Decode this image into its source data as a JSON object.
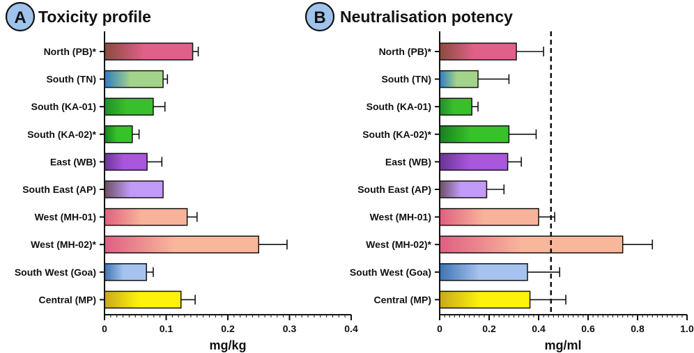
{
  "chart_data": [
    {
      "type": "bar",
      "orientation": "horizontal",
      "badge": "A",
      "title": "Toxicity profile",
      "xlabel": "mg/kg",
      "ylabel": "",
      "xlim": [
        0,
        0.4
      ],
      "xticks": [
        0,
        0.1,
        0.2,
        0.3,
        0.4
      ],
      "xtick_labels": [
        "0",
        "0.1",
        "0.2",
        "0.3",
        "0.4"
      ],
      "categories": [
        "North (PB)*",
        "South (TN)",
        "South (KA-01)",
        "South (KA-02)*",
        "East (WB)",
        "South East (AP)",
        "West (MH-01)",
        "West (MH-02)*",
        "South West (Goa)",
        "Central (MP)"
      ],
      "values": [
        0.143,
        0.095,
        0.079,
        0.045,
        0.069,
        0.095,
        0.134,
        0.25,
        0.068,
        0.124
      ],
      "errors": [
        0.009,
        0.007,
        0.019,
        0.011,
        0.024,
        0.0,
        0.016,
        0.046,
        0.011,
        0.023
      ],
      "grid": false
    },
    {
      "type": "bar",
      "orientation": "horizontal",
      "badge": "B",
      "title": "Neutralisation potency",
      "xlabel": "mg/ml",
      "ylabel": "",
      "xlim": [
        0,
        1.0
      ],
      "xticks": [
        0,
        0.2,
        0.4,
        0.6,
        0.8,
        1.0
      ],
      "xtick_labels": [
        "0",
        "0.2",
        "0.4",
        "0.6",
        "0.8",
        "1.0"
      ],
      "categories": [
        "North (PB)*",
        "South (TN)",
        "South (KA-01)",
        "South (KA-02)*",
        "East (WB)",
        "South East (AP)",
        "West (MH-01)",
        "West (MH-02)*",
        "South West (Goa)",
        "Central (MP)"
      ],
      "values": [
        0.31,
        0.155,
        0.13,
        0.28,
        0.275,
        0.19,
        0.4,
        0.74,
        0.355,
        0.365
      ],
      "errors": [
        0.11,
        0.125,
        0.025,
        0.11,
        0.055,
        0.07,
        0.065,
        0.12,
        0.13,
        0.145
      ],
      "reference_line": 0.45,
      "grid": false
    }
  ],
  "bar_colors": [
    [
      "#8a4b3c",
      "#e1608a"
    ],
    [
      "#2e7bc2",
      "#a4d48a"
    ],
    [
      "#1e8f2b",
      "#38c02b"
    ],
    [
      "#1a7f20",
      "#37c22a"
    ],
    [
      "#6a3596",
      "#a957de"
    ],
    [
      "#6b4f62",
      "#c29af8"
    ],
    [
      "#e0607e",
      "#f7b49a"
    ],
    [
      "#df5e82",
      "#f8b69b"
    ],
    [
      "#3e73b2",
      "#a5c3ee"
    ],
    [
      "#c9a81c",
      "#fdf20c"
    ]
  ],
  "badge_color": "#9fc3ea"
}
